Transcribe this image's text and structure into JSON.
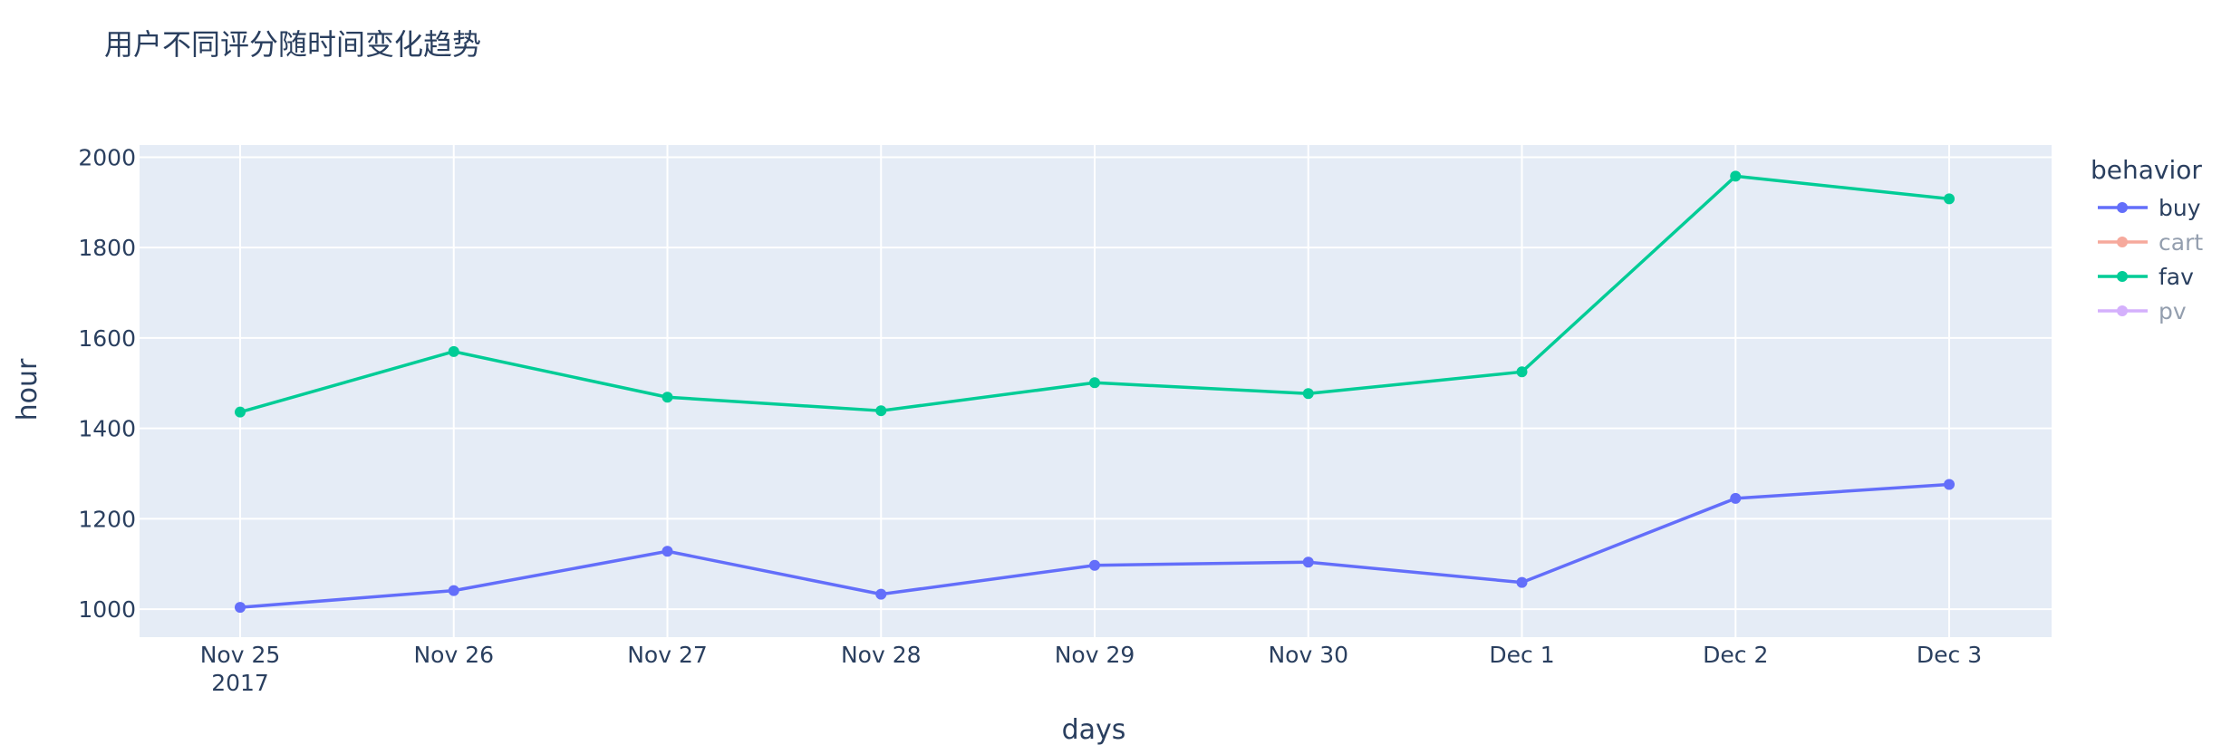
{
  "chart_data": {
    "type": "line",
    "title": "用户不同评分随时间变化趋势",
    "xlabel": "days",
    "ylabel": "hour",
    "x": [
      "2017-11-25",
      "2017-11-26",
      "2017-11-27",
      "2017-11-28",
      "2017-11-29",
      "2017-11-30",
      "2017-12-01",
      "2017-12-02",
      "2017-12-03"
    ],
    "x_tick_labels": [
      "Nov 25",
      "Nov 26",
      "Nov 27",
      "Nov 28",
      "Nov 29",
      "Nov 30",
      "Dec 1",
      "Dec 2",
      "Dec 3"
    ],
    "x_year_label": "2017",
    "y_ticks": [
      1000,
      1200,
      1400,
      1600,
      1800,
      2000
    ],
    "y_tick_labels": [
      "1000",
      "1200",
      "1400",
      "1600",
      "1800",
      "2000"
    ],
    "ylim": [
      938,
      2027
    ],
    "grid": true,
    "legend": {
      "title": "behavior",
      "placement": "right",
      "entries": [
        {
          "name": "buy",
          "color": "#636efa",
          "visible": true
        },
        {
          "name": "cart",
          "color": "#ef553b",
          "visible": false
        },
        {
          "name": "fav",
          "color": "#00cc96",
          "visible": true
        },
        {
          "name": "pv",
          "color": "#ab63fa",
          "visible": false
        }
      ]
    },
    "series": [
      {
        "name": "buy",
        "color": "#636efa",
        "values": [
          1004,
          1041,
          1128,
          1033,
          1097,
          1104,
          1059,
          1245,
          1276
        ]
      },
      {
        "name": "fav",
        "color": "#00cc96",
        "values": [
          1436,
          1570,
          1469,
          1439,
          1501,
          1477,
          1525,
          1958,
          1908
        ]
      }
    ],
    "plot_background": "#e5ecf6",
    "grid_color": "#ffffff"
  }
}
